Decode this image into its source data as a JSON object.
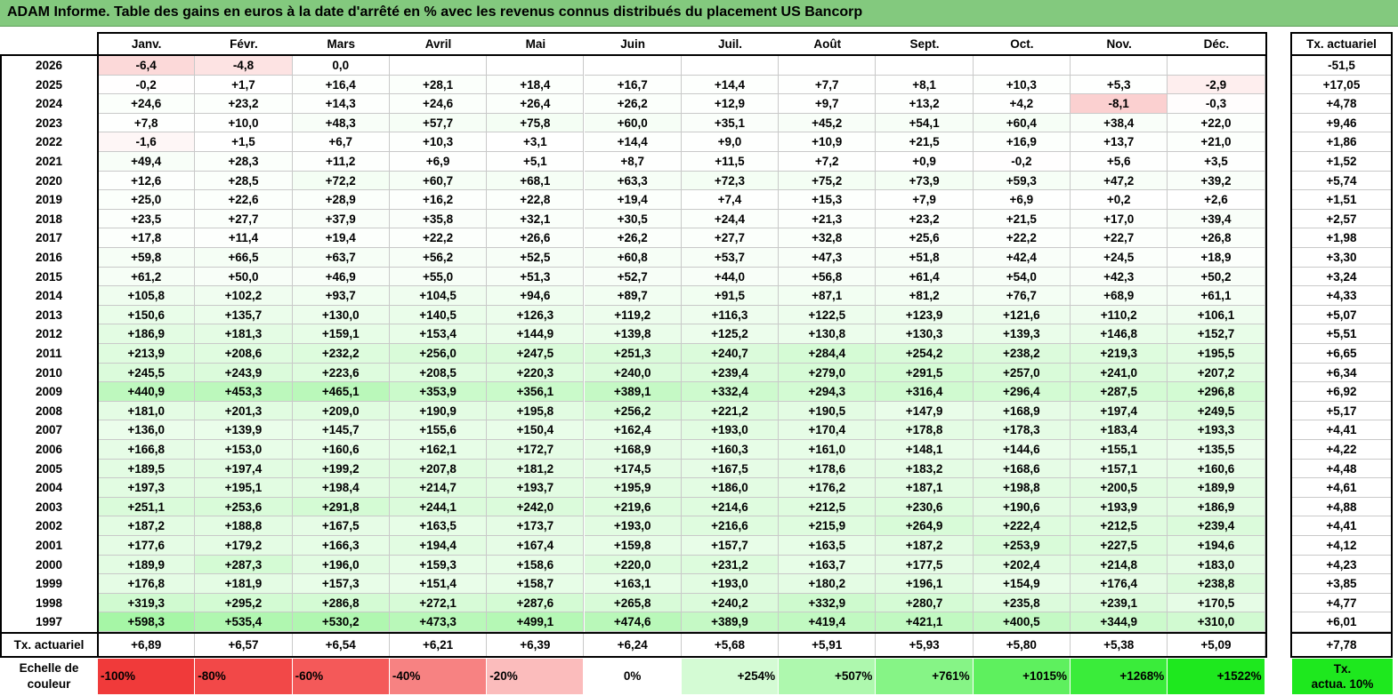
{
  "title": "ADAM Informe. Table des gains en euros à la date d'arrêté en % avec les revenus connus distribués du placement US Bancorp",
  "chart_data": {
    "type": "table",
    "columns": [
      "Janv.",
      "Févr.",
      "Mars",
      "Avril",
      "Mai",
      "Juin",
      "Juil.",
      "Août",
      "Sept.",
      "Oct.",
      "Nov.",
      "Déc."
    ],
    "side_column": "Tx. actuariel",
    "rows": [
      {
        "year": "2026",
        "values": [
          "-6,4",
          "-4,8",
          "0,0",
          "",
          "",
          "",
          "",
          "",
          "",
          "",
          "",
          ""
        ],
        "tx": "-51,5"
      },
      {
        "year": "2025",
        "values": [
          "-0,2",
          "+1,7",
          "+16,4",
          "+28,1",
          "+18,4",
          "+16,7",
          "+14,4",
          "+7,7",
          "+8,1",
          "+10,3",
          "+5,3",
          "-2,9"
        ],
        "tx": "+17,05"
      },
      {
        "year": "2024",
        "values": [
          "+24,6",
          "+23,2",
          "+14,3",
          "+24,6",
          "+26,4",
          "+26,2",
          "+12,9",
          "+9,7",
          "+13,2",
          "+4,2",
          "-8,1",
          "-0,3"
        ],
        "tx": "+4,78"
      },
      {
        "year": "2023",
        "values": [
          "+7,8",
          "+10,0",
          "+48,3",
          "+57,7",
          "+75,8",
          "+60,0",
          "+35,1",
          "+45,2",
          "+54,1",
          "+60,4",
          "+38,4",
          "+22,0"
        ],
        "tx": "+9,46"
      },
      {
        "year": "2022",
        "values": [
          "-1,6",
          "+1,5",
          "+6,7",
          "+10,3",
          "+3,1",
          "+14,4",
          "+9,0",
          "+10,9",
          "+21,5",
          "+16,9",
          "+13,7",
          "+21,0"
        ],
        "tx": "+1,86"
      },
      {
        "year": "2021",
        "values": [
          "+49,4",
          "+28,3",
          "+11,2",
          "+6,9",
          "+5,1",
          "+8,7",
          "+11,5",
          "+7,2",
          "+0,9",
          "-0,2",
          "+5,6",
          "+3,5"
        ],
        "tx": "+1,52"
      },
      {
        "year": "2020",
        "values": [
          "+12,6",
          "+28,5",
          "+72,2",
          "+60,7",
          "+68,1",
          "+63,3",
          "+72,3",
          "+75,2",
          "+73,9",
          "+59,3",
          "+47,2",
          "+39,2"
        ],
        "tx": "+5,74"
      },
      {
        "year": "2019",
        "values": [
          "+25,0",
          "+22,6",
          "+28,9",
          "+16,2",
          "+22,8",
          "+19,4",
          "+7,4",
          "+15,3",
          "+7,9",
          "+6,9",
          "+0,2",
          "+2,6"
        ],
        "tx": "+1,51"
      },
      {
        "year": "2018",
        "values": [
          "+23,5",
          "+27,7",
          "+37,9",
          "+35,8",
          "+32,1",
          "+30,5",
          "+24,4",
          "+21,3",
          "+23,2",
          "+21,5",
          "+17,0",
          "+39,4"
        ],
        "tx": "+2,57"
      },
      {
        "year": "2017",
        "values": [
          "+17,8",
          "+11,4",
          "+19,4",
          "+22,2",
          "+26,6",
          "+26,2",
          "+27,7",
          "+32,8",
          "+25,6",
          "+22,2",
          "+22,7",
          "+26,8"
        ],
        "tx": "+1,98"
      },
      {
        "year": "2016",
        "values": [
          "+59,8",
          "+66,5",
          "+63,7",
          "+56,2",
          "+52,5",
          "+60,8",
          "+53,7",
          "+47,3",
          "+51,8",
          "+42,4",
          "+24,5",
          "+18,9"
        ],
        "tx": "+3,30"
      },
      {
        "year": "2015",
        "values": [
          "+61,2",
          "+50,0",
          "+46,9",
          "+55,0",
          "+51,3",
          "+52,7",
          "+44,0",
          "+56,8",
          "+61,4",
          "+54,0",
          "+42,3",
          "+50,2"
        ],
        "tx": "+3,24"
      },
      {
        "year": "2014",
        "values": [
          "+105,8",
          "+102,2",
          "+93,7",
          "+104,5",
          "+94,6",
          "+89,7",
          "+91,5",
          "+87,1",
          "+81,2",
          "+76,7",
          "+68,9",
          "+61,1"
        ],
        "tx": "+4,33"
      },
      {
        "year": "2013",
        "values": [
          "+150,6",
          "+135,7",
          "+130,0",
          "+140,5",
          "+126,3",
          "+119,2",
          "+116,3",
          "+122,5",
          "+123,9",
          "+121,6",
          "+110,2",
          "+106,1"
        ],
        "tx": "+5,07"
      },
      {
        "year": "2012",
        "values": [
          "+186,9",
          "+181,3",
          "+159,1",
          "+153,4",
          "+144,9",
          "+139,8",
          "+125,2",
          "+130,8",
          "+130,3",
          "+139,3",
          "+146,8",
          "+152,7"
        ],
        "tx": "+5,51"
      },
      {
        "year": "2011",
        "values": [
          "+213,9",
          "+208,6",
          "+232,2",
          "+256,0",
          "+247,5",
          "+251,3",
          "+240,7",
          "+284,4",
          "+254,2",
          "+238,2",
          "+219,3",
          "+195,5"
        ],
        "tx": "+6,65"
      },
      {
        "year": "2010",
        "values": [
          "+245,5",
          "+243,9",
          "+223,6",
          "+208,5",
          "+220,3",
          "+240,0",
          "+239,4",
          "+279,0",
          "+291,5",
          "+257,0",
          "+241,0",
          "+207,2"
        ],
        "tx": "+6,34"
      },
      {
        "year": "2009",
        "values": [
          "+440,9",
          "+453,3",
          "+465,1",
          "+353,9",
          "+356,1",
          "+389,1",
          "+332,4",
          "+294,3",
          "+316,4",
          "+296,4",
          "+287,5",
          "+296,8"
        ],
        "tx": "+6,92"
      },
      {
        "year": "2008",
        "values": [
          "+181,0",
          "+201,3",
          "+209,0",
          "+190,9",
          "+195,8",
          "+256,2",
          "+221,2",
          "+190,5",
          "+147,9",
          "+168,9",
          "+197,4",
          "+249,5"
        ],
        "tx": "+5,17"
      },
      {
        "year": "2007",
        "values": [
          "+136,0",
          "+139,9",
          "+145,7",
          "+155,6",
          "+150,4",
          "+162,4",
          "+193,0",
          "+170,4",
          "+178,8",
          "+178,3",
          "+183,4",
          "+193,3"
        ],
        "tx": "+4,41"
      },
      {
        "year": "2006",
        "values": [
          "+166,8",
          "+153,0",
          "+160,6",
          "+162,1",
          "+172,7",
          "+168,9",
          "+160,3",
          "+161,0",
          "+148,1",
          "+144,6",
          "+155,1",
          "+135,5"
        ],
        "tx": "+4,22"
      },
      {
        "year": "2005",
        "values": [
          "+189,5",
          "+197,4",
          "+199,2",
          "+207,8",
          "+181,2",
          "+174,5",
          "+167,5",
          "+178,6",
          "+183,2",
          "+168,6",
          "+157,1",
          "+160,6"
        ],
        "tx": "+4,48"
      },
      {
        "year": "2004",
        "values": [
          "+197,3",
          "+195,1",
          "+198,4",
          "+214,7",
          "+193,7",
          "+195,9",
          "+186,0",
          "+176,2",
          "+187,1",
          "+198,8",
          "+200,5",
          "+189,9"
        ],
        "tx": "+4,61"
      },
      {
        "year": "2003",
        "values": [
          "+251,1",
          "+253,6",
          "+291,8",
          "+244,1",
          "+242,0",
          "+219,6",
          "+214,6",
          "+212,5",
          "+230,6",
          "+190,6",
          "+193,9",
          "+186,9"
        ],
        "tx": "+4,88"
      },
      {
        "year": "2002",
        "values": [
          "+187,2",
          "+188,8",
          "+167,5",
          "+163,5",
          "+173,7",
          "+193,0",
          "+216,6",
          "+215,9",
          "+264,9",
          "+222,4",
          "+212,5",
          "+239,4"
        ],
        "tx": "+4,41"
      },
      {
        "year": "2001",
        "values": [
          "+177,6",
          "+179,2",
          "+166,3",
          "+194,4",
          "+167,4",
          "+159,8",
          "+157,7",
          "+163,5",
          "+187,2",
          "+253,9",
          "+227,5",
          "+194,6"
        ],
        "tx": "+4,12"
      },
      {
        "year": "2000",
        "values": [
          "+189,9",
          "+287,3",
          "+196,0",
          "+159,3",
          "+158,6",
          "+220,0",
          "+231,2",
          "+163,7",
          "+177,5",
          "+202,4",
          "+214,8",
          "+183,0"
        ],
        "tx": "+4,23"
      },
      {
        "year": "1999",
        "values": [
          "+176,8",
          "+181,9",
          "+157,3",
          "+151,4",
          "+158,7",
          "+163,1",
          "+193,0",
          "+180,2",
          "+196,1",
          "+154,9",
          "+176,4",
          "+238,8"
        ],
        "tx": "+3,85"
      },
      {
        "year": "1998",
        "values": [
          "+319,3",
          "+295,2",
          "+286,8",
          "+272,1",
          "+287,6",
          "+265,8",
          "+240,2",
          "+332,9",
          "+280,7",
          "+235,8",
          "+239,1",
          "+170,5"
        ],
        "tx": "+4,77"
      },
      {
        "year": "1997",
        "values": [
          "+598,3",
          "+535,4",
          "+530,2",
          "+473,3",
          "+499,1",
          "+474,6",
          "+389,9",
          "+419,4",
          "+421,1",
          "+400,5",
          "+344,9",
          "+310,0"
        ],
        "tx": "+6,01"
      }
    ],
    "footer_row": {
      "label": "Tx. actuariel",
      "values": [
        "+6,89",
        "+6,57",
        "+6,54",
        "+6,21",
        "+6,39",
        "+6,24",
        "+5,68",
        "+5,91",
        "+5,93",
        "+5,80",
        "+5,38",
        "+5,09"
      ],
      "tx": "+7,78"
    },
    "color_scale": {
      "label": [
        "Echelle de",
        "couleur"
      ],
      "steps": [
        {
          "text": "-100%",
          "color": "#f03a3a"
        },
        {
          "text": "-80%",
          "color": "#f24848"
        },
        {
          "text": "-60%",
          "color": "#f45959"
        },
        {
          "text": "-40%",
          "color": "#f78282"
        },
        {
          "text": "-20%",
          "color": "#fbbcbc"
        },
        {
          "text": "0%",
          "color": "#ffffff"
        },
        {
          "text": "+254%",
          "color": "#d4fbd4"
        },
        {
          "text": "+507%",
          "color": "#aef8ae"
        },
        {
          "text": "+761%",
          "color": "#86f486"
        },
        {
          "text": "+1015%",
          "color": "#5ef05e"
        },
        {
          "text": "+1268%",
          "color": "#3aec3a"
        },
        {
          "text": "+1522%",
          "color": "#1ee81e"
        }
      ],
      "badge": [
        "Tx.",
        "actua. 10%"
      ],
      "badge_color": "#1ee81e"
    }
  },
  "colors": {
    "title_bg": "#83c97e",
    "positive_max": "#a6f6a6",
    "negative_max": "#fbd0d0"
  }
}
